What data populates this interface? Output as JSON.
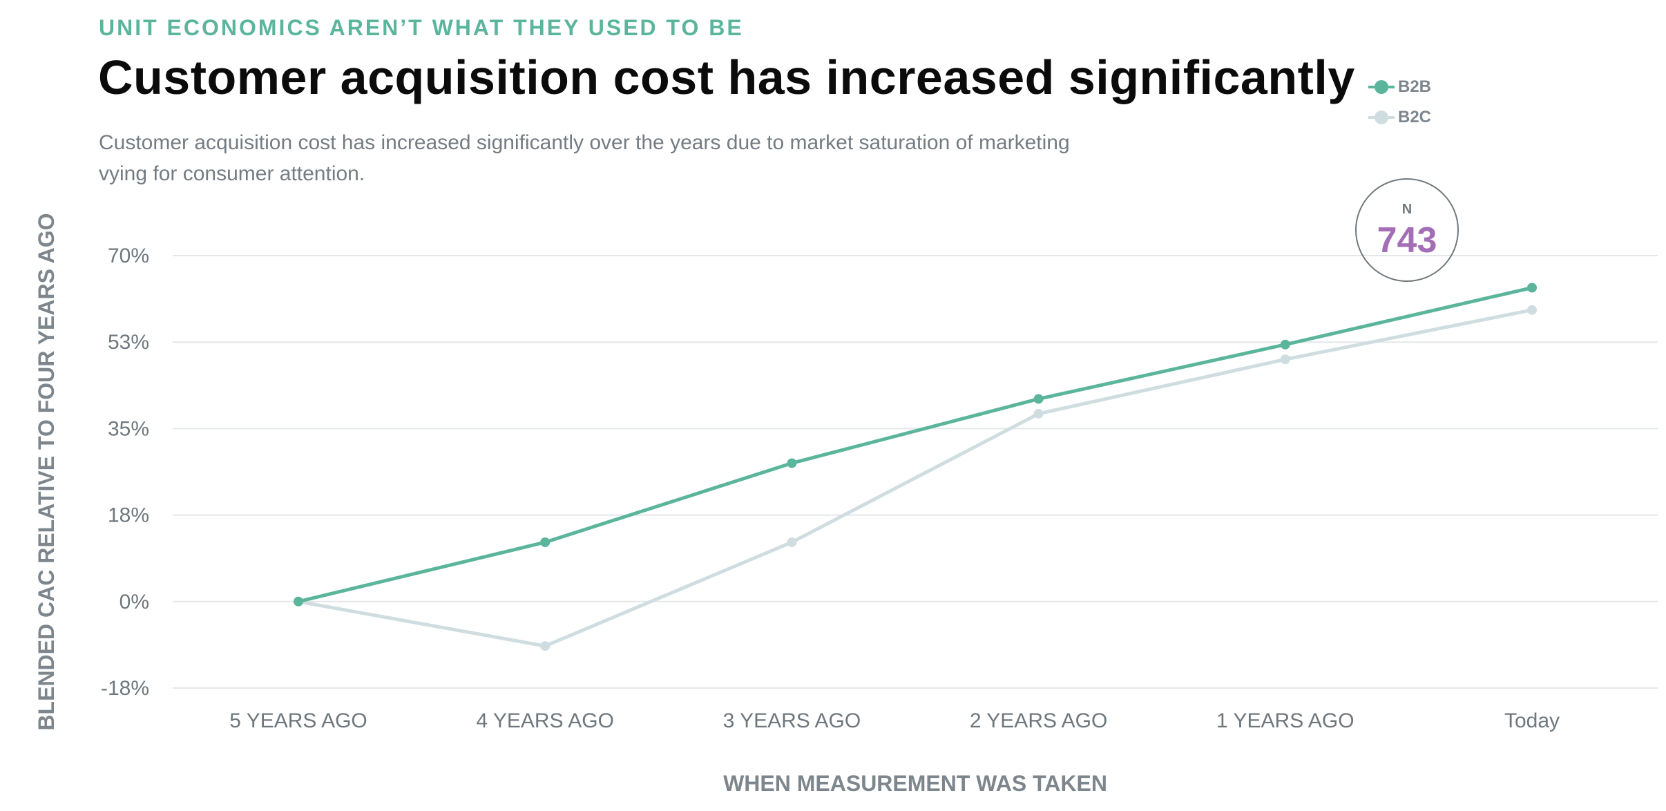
{
  "header": {
    "eyebrow": "UNIT ECONOMICS AREN’T WHAT THEY USED TO BE",
    "title": "Customer acquisition cost has increased significantly",
    "subtitle": "Customer acquisition cost has increased significantly over the years due to market saturation of marketing vying for consumer attention."
  },
  "legend": {
    "items": [
      {
        "label": "B2B",
        "color": "#5bb59c"
      },
      {
        "label": "B2C",
        "color": "#cfdde0"
      }
    ]
  },
  "sample": {
    "label": "N",
    "value": "743"
  },
  "chart_data": {
    "type": "line",
    "title": "Customer acquisition cost has increased significantly",
    "xlabel": "WHEN MEASUREMENT WAS TAKEN",
    "ylabel": "BLENDED CAC RELATIVE TO FOUR YEARS AGO",
    "categories": [
      "5 YEARS AGO",
      "4 YEARS AGO",
      "3 YEARS AGO",
      "2 YEARS AGO",
      "1 YEARS AGO",
      "Today"
    ],
    "yticks": [
      -17.5,
      0,
      17.5,
      35,
      52.5,
      70
    ],
    "ytick_labels": [
      "-18%",
      "0%",
      "18%",
      "35%",
      "53%",
      "70%"
    ],
    "ylim": [
      -17.5,
      70
    ],
    "grid": true,
    "legend_position": "top-right",
    "series": [
      {
        "name": "B2B",
        "color": "#5bb59c",
        "values": [
          0,
          12,
          28,
          41,
          52,
          63.5
        ]
      },
      {
        "name": "B2C",
        "color": "#cfdde0",
        "values": [
          0,
          -9,
          12,
          38,
          49,
          59
        ]
      }
    ]
  }
}
